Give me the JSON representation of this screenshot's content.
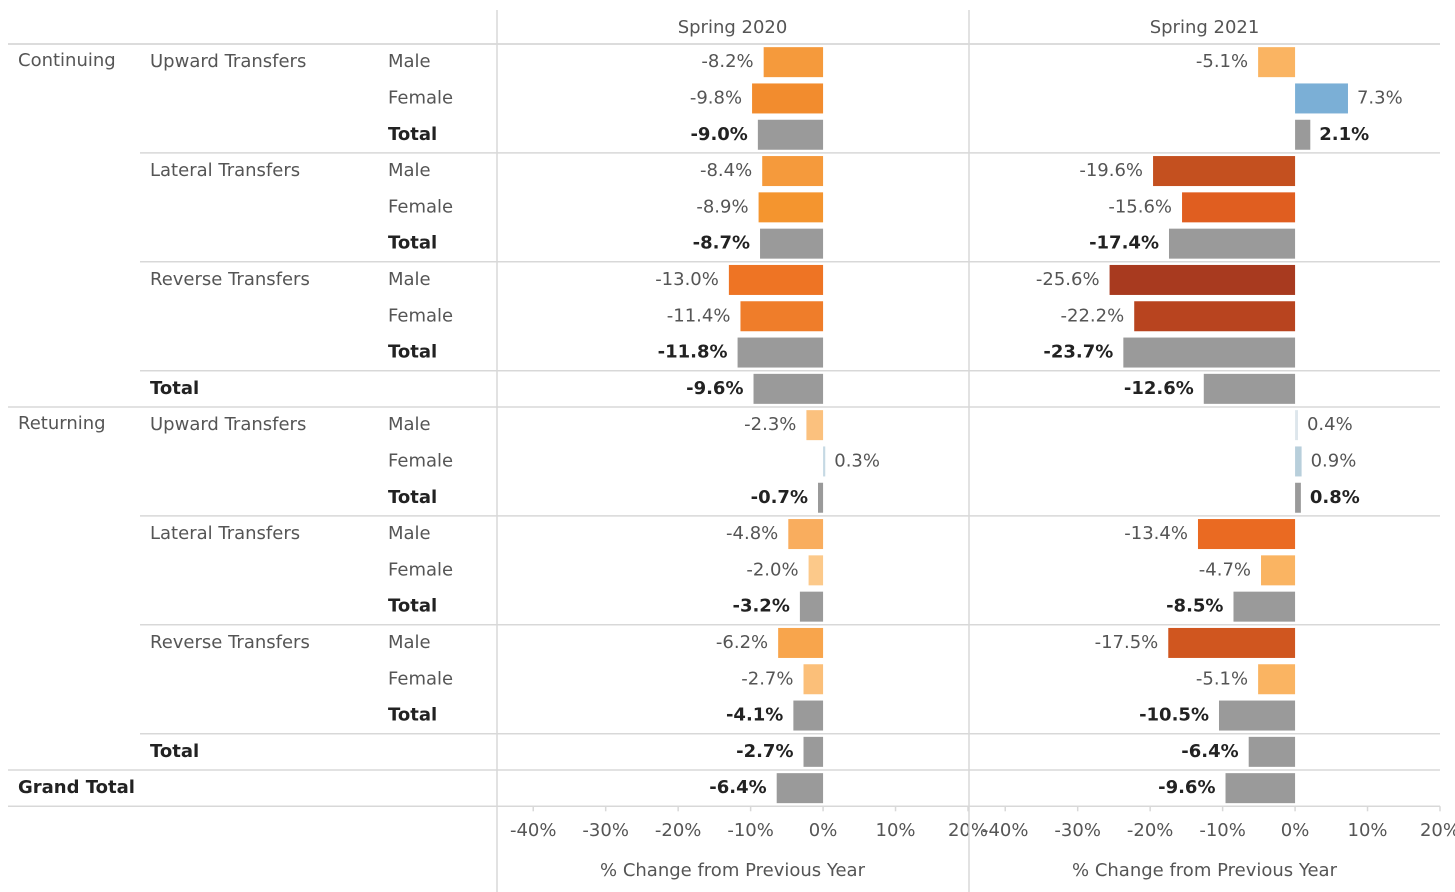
{
  "chart_data": {
    "type": "bar",
    "orientation": "horizontal",
    "rows": [
      {
        "group": "Continuing",
        "subgroup": "Upward Transfers",
        "item": "Male"
      },
      {
        "item": "Female"
      },
      {
        "item": "Total",
        "bold": true
      },
      {
        "subgroup": "Lateral Transfers",
        "item": "Male"
      },
      {
        "item": "Female"
      },
      {
        "item": "Total",
        "bold": true
      },
      {
        "subgroup": "Reverse Transfers",
        "item": "Male"
      },
      {
        "item": "Female"
      },
      {
        "item": "Total",
        "bold": true
      },
      {
        "subgroup": "Total",
        "bold": true
      },
      {
        "group": "Returning",
        "subgroup": "Upward Transfers",
        "item": "Male"
      },
      {
        "item": "Female"
      },
      {
        "item": "Total",
        "bold": true
      },
      {
        "subgroup": "Lateral Transfers",
        "item": "Male"
      },
      {
        "item": "Female"
      },
      {
        "item": "Total",
        "bold": true
      },
      {
        "subgroup": "Reverse Transfers",
        "item": "Male"
      },
      {
        "item": "Female"
      },
      {
        "item": "Total",
        "bold": true
      },
      {
        "subgroup": "Total",
        "bold": true
      },
      {
        "group": "Grand Total",
        "bold": true
      }
    ],
    "panels": [
      {
        "title": "Spring 2020",
        "values": [
          -8.2,
          -9.8,
          -9.0,
          -8.4,
          -8.9,
          -8.7,
          -13.0,
          -11.4,
          -11.8,
          -9.6,
          -2.3,
          0.3,
          -0.7,
          -4.8,
          -2.0,
          -3.2,
          -6.2,
          -2.7,
          -4.1,
          -2.7,
          -6.4
        ],
        "value_labels": [
          "-8.2%",
          "-9.8%",
          "-9.0%",
          "-8.4%",
          "-8.9%",
          "-8.7%",
          "-13.0%",
          "-11.4%",
          "-11.8%",
          "-9.6%",
          "-2.3%",
          "0.3%",
          "-0.7%",
          "-4.8%",
          "-2.0%",
          "-3.2%",
          "-6.2%",
          "-2.7%",
          "-4.1%",
          "-2.7%",
          "-6.4%"
        ],
        "colors": [
          "#f59a3c",
          "#f28c2e",
          "#9a9a9a",
          "#f59a3c",
          "#f4952f",
          "#9a9a9a",
          "#ee7424",
          "#ef7d2a",
          "#9a9a9a",
          "#9a9a9a",
          "#fbc17e",
          "#c6d9e4",
          "#9a9a9a",
          "#f9ad5e",
          "#fcc98a",
          "#9a9a9a",
          "#f8a54c",
          "#fbbf79",
          "#9a9a9a",
          "#9a9a9a",
          "#9a9a9a"
        ],
        "xlim": [
          -45,
          20
        ],
        "xticks": [
          {
            "value": -40,
            "label": "-40%"
          },
          {
            "value": -30,
            "label": "-30%"
          },
          {
            "value": -20,
            "label": "-20%"
          },
          {
            "value": -10,
            "label": "-10%"
          },
          {
            "value": 0,
            "label": "0%"
          },
          {
            "value": 10,
            "label": "10%"
          },
          {
            "value": 20,
            "label": "20%"
          }
        ],
        "xlabel": "% Change from Previous Year"
      },
      {
        "title": "Spring 2021",
        "values": [
          -5.1,
          7.3,
          2.1,
          -19.6,
          -15.6,
          -17.4,
          -25.6,
          -22.2,
          -23.7,
          -12.6,
          0.4,
          0.9,
          0.8,
          -13.4,
          -4.7,
          -8.5,
          -17.5,
          -5.1,
          -10.5,
          -6.4,
          -9.6
        ],
        "value_labels": [
          "-5.1%",
          "7.3%",
          "2.1%",
          "-19.6%",
          "-15.6%",
          "-17.4%",
          "-25.6%",
          "-22.2%",
          "-23.7%",
          "-12.6%",
          "0.4%",
          "0.9%",
          "0.8%",
          "-13.4%",
          "-4.7%",
          "-8.5%",
          "-17.5%",
          "-5.1%",
          "-10.5%",
          "-6.4%",
          "-9.6%"
        ],
        "colors": [
          "#fab462",
          "#7bafd6",
          "#9a9a9a",
          "#c4501f",
          "#e05e20",
          "#9a9a9a",
          "#a83a1f",
          "#b8441f",
          "#9a9a9a",
          "#9a9a9a",
          "#dde6ec",
          "#b8cfdb",
          "#9a9a9a",
          "#ea6a22",
          "#fab462",
          "#9a9a9a",
          "#d0561f",
          "#fab462",
          "#9a9a9a",
          "#9a9a9a",
          "#9a9a9a"
        ],
        "xlim": [
          -45,
          20
        ],
        "xticks": [
          {
            "value": -40,
            "label": "-40%"
          },
          {
            "value": -30,
            "label": "-30%"
          },
          {
            "value": -20,
            "label": "-20%"
          },
          {
            "value": -10,
            "label": "-10%"
          },
          {
            "value": 0,
            "label": "0%"
          },
          {
            "value": 10,
            "label": "10%"
          },
          {
            "value": 20,
            "label": "20%"
          }
        ],
        "xlabel": "% Change from Previous Year"
      }
    ]
  }
}
